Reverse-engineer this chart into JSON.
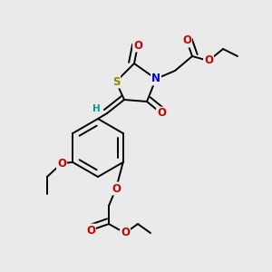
{
  "bg_color": "#eaeaea",
  "atom_colors": {
    "S": "#8b8b00",
    "N": "#0000cc",
    "O": "#cc0000",
    "C": "#000000",
    "H": "#009999"
  },
  "bond_color": "#000000",
  "bond_lw": 1.4,
  "font_size": 8.5,
  "figsize": [
    3.0,
    3.0
  ],
  "dpi": 100,
  "xlim": [
    0,
    300
  ],
  "ylim": [
    0,
    300
  ]
}
